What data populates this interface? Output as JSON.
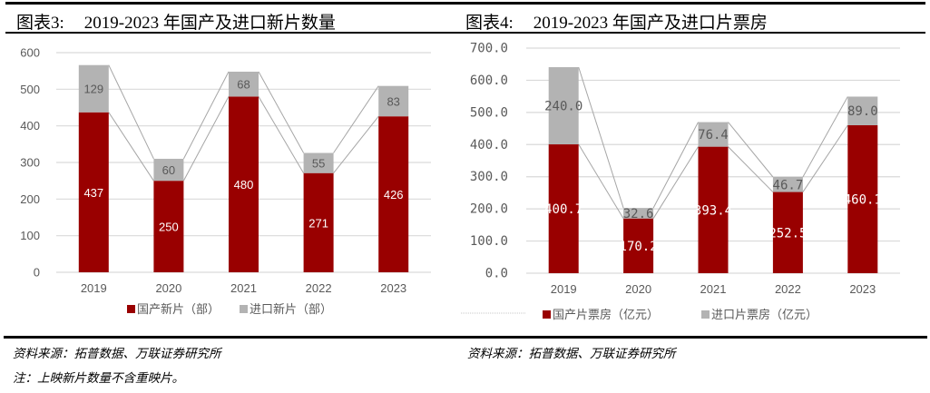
{
  "colors": {
    "domestic": "#990000",
    "imported": "#b3b3b3",
    "grid": "#d9d9d9",
    "axis_text": "#595959",
    "connector": "#a6a6a6"
  },
  "chart_data": [
    {
      "type": "bar",
      "stacked": true,
      "figure_label": "图表3:",
      "title": "2019-2023 年国产及进口新片数量",
      "categories": [
        "2019",
        "2020",
        "2021",
        "2022",
        "2023"
      ],
      "series": [
        {
          "name": "国产新片（部）",
          "values": [
            437,
            250,
            480,
            271,
            426
          ],
          "labels": [
            "437",
            "250",
            "480",
            "271",
            "426"
          ]
        },
        {
          "name": "进口新片（部）",
          "values": [
            129,
            60,
            68,
            55,
            83
          ],
          "labels": [
            "129",
            "60",
            "68",
            "55",
            "83"
          ]
        }
      ],
      "yticks": [
        "0",
        "100",
        "200",
        "300",
        "400",
        "500",
        "600"
      ],
      "ylim": [
        0,
        600
      ],
      "grid": true,
      "legend": "bottom",
      "xlabel": "",
      "ylabel": "",
      "source": "资料来源：拓普数据、万联证券研究所",
      "note": "注：上映新片数量不含重映片。"
    },
    {
      "type": "bar",
      "stacked": true,
      "figure_label": "图表4:",
      "title": "2019-2023 年国产及进口片票房",
      "categories": [
        "2019",
        "2020",
        "2021",
        "2022",
        "2023"
      ],
      "series": [
        {
          "name": "国产片票房（亿元）",
          "values": [
            400.7,
            170.2,
            393.4,
            252.5,
            460.1
          ],
          "labels": [
            "400.7",
            "170.2",
            "393.4",
            "252.5",
            "460.1"
          ]
        },
        {
          "name": "进口片票房（亿元）",
          "values": [
            240.0,
            32.6,
            76.4,
            46.7,
            89.0
          ],
          "labels": [
            "240.0",
            "32.6",
            "76.4",
            "46.7",
            "89.0"
          ]
        }
      ],
      "yticks": [
        "0.0",
        "100.0",
        "200.0",
        "300.0",
        "400.0",
        "500.0",
        "600.0",
        "700.0"
      ],
      "ylim": [
        0,
        700
      ],
      "grid": true,
      "legend": "bottom",
      "xlabel": "",
      "ylabel": "",
      "source": "资料来源：拓普数据、万联证券研究所"
    }
  ]
}
